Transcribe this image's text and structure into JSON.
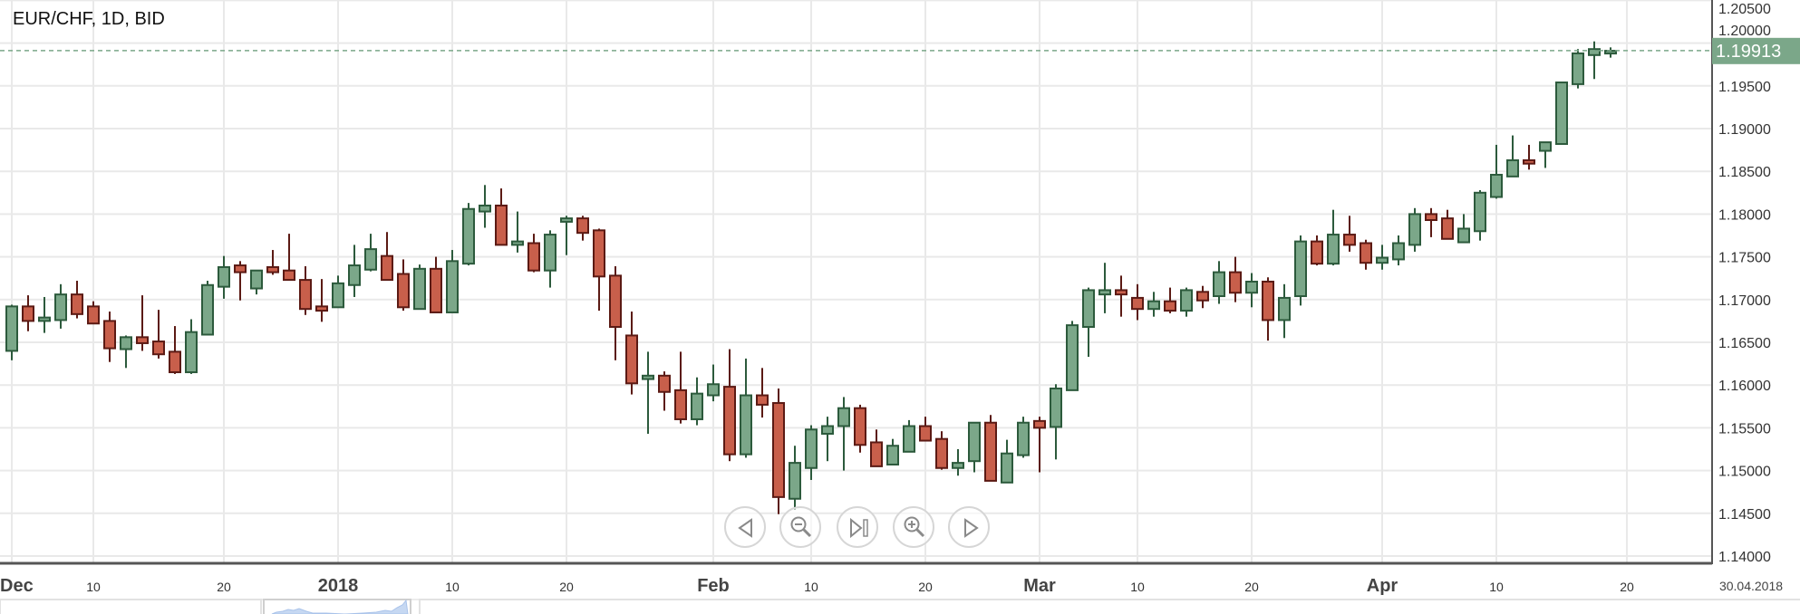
{
  "chart_data": {
    "type": "candlestick",
    "title": "EUR/CHF, 1D, BID",
    "ylim": [
      1.14,
      1.205
    ],
    "y_ticks": [
      "1.14000",
      "1.14500",
      "1.15000",
      "1.15500",
      "1.16000",
      "1.16500",
      "1.17000",
      "1.17500",
      "1.18000",
      "1.18500",
      "1.19000",
      "1.19500",
      "1.20000",
      "1.20500"
    ],
    "x_ticks": [
      {
        "label": "Dec",
        "at": 0,
        "bold": true
      },
      {
        "label": "10",
        "at": 5,
        "bold": false
      },
      {
        "label": "20",
        "at": 13,
        "bold": false
      },
      {
        "label": "2018",
        "at": 20,
        "bold": true
      },
      {
        "label": "10",
        "at": 27,
        "bold": false
      },
      {
        "label": "20",
        "at": 34,
        "bold": false
      },
      {
        "label": "Feb",
        "at": 43,
        "bold": true
      },
      {
        "label": "10",
        "at": 49,
        "bold": false
      },
      {
        "label": "20",
        "at": 56,
        "bold": false
      },
      {
        "label": "Mar",
        "at": 63,
        "bold": true
      },
      {
        "label": "10",
        "at": 69,
        "bold": false
      },
      {
        "label": "20",
        "at": 76,
        "bold": false
      },
      {
        "label": "Apr",
        "at": 84,
        "bold": true
      },
      {
        "label": "10",
        "at": 91,
        "bold": false
      },
      {
        "label": "20",
        "at": 99,
        "bold": false
      }
    ],
    "end_date_label": "30.04.2018",
    "last_price": "1.19913",
    "grid": true,
    "colors": {
      "up_fill": "#7ba789",
      "up_stroke": "#2c5a3c",
      "down_fill": "#c85f4b",
      "down_stroke": "#5b1a14",
      "last_price": "#7ba789"
    },
    "ohlc": [
      [
        1.164,
        1.1694,
        1.1629,
        1.1692
      ],
      [
        1.1692,
        1.1705,
        1.1663,
        1.1675
      ],
      [
        1.1675,
        1.1703,
        1.1661,
        1.1679
      ],
      [
        1.1676,
        1.1718,
        1.1666,
        1.1706
      ],
      [
        1.1706,
        1.1722,
        1.1678,
        1.1683
      ],
      [
        1.1692,
        1.1698,
        1.1672,
        1.1672
      ],
      [
        1.1675,
        1.1686,
        1.1627,
        1.1643
      ],
      [
        1.1642,
        1.1658,
        1.162,
        1.1656
      ],
      [
        1.1656,
        1.1705,
        1.164,
        1.1649
      ],
      [
        1.1651,
        1.1688,
        1.1631,
        1.1636
      ],
      [
        1.1639,
        1.1669,
        1.1613,
        1.1615
      ],
      [
        1.1615,
        1.1677,
        1.1613,
        1.1662
      ],
      [
        1.1659,
        1.1722,
        1.1659,
        1.1717
      ],
      [
        1.1715,
        1.1751,
        1.1701,
        1.1738
      ],
      [
        1.174,
        1.1745,
        1.1699,
        1.1732
      ],
      [
        1.1713,
        1.1734,
        1.1706,
        1.1734
      ],
      [
        1.1738,
        1.1758,
        1.1729,
        1.1732
      ],
      [
        1.1734,
        1.1777,
        1.1723,
        1.1723
      ],
      [
        1.1723,
        1.1739,
        1.1682,
        1.1689
      ],
      [
        1.1692,
        1.1724,
        1.1674,
        1.1687
      ],
      [
        1.1691,
        1.1728,
        1.1691,
        1.1719
      ],
      [
        1.1717,
        1.1764,
        1.1703,
        1.174
      ],
      [
        1.1735,
        1.1777,
        1.1733,
        1.1759
      ],
      [
        1.1751,
        1.1779,
        1.1723,
        1.1723
      ],
      [
        1.173,
        1.1747,
        1.1687,
        1.1691
      ],
      [
        1.1689,
        1.1741,
        1.1689,
        1.1736
      ],
      [
        1.1736,
        1.175,
        1.1685,
        1.1685
      ],
      [
        1.1685,
        1.1758,
        1.1685,
        1.1745
      ],
      [
        1.1742,
        1.1813,
        1.174,
        1.1806
      ],
      [
        1.1803,
        1.1834,
        1.1784,
        1.181
      ],
      [
        1.181,
        1.183,
        1.1764,
        1.1764
      ],
      [
        1.1764,
        1.1803,
        1.1755,
        1.1768
      ],
      [
        1.1766,
        1.1777,
        1.1732,
        1.1734
      ],
      [
        1.1734,
        1.1781,
        1.1714,
        1.1776
      ],
      [
        1.1791,
        1.1798,
        1.1752,
        1.1795
      ],
      [
        1.1795,
        1.1798,
        1.1769,
        1.1778
      ],
      [
        1.1781,
        1.1783,
        1.1687,
        1.1727
      ],
      [
        1.1728,
        1.1739,
        1.1629,
        1.1668
      ],
      [
        1.1658,
        1.1686,
        1.1589,
        1.1602
      ],
      [
        1.1607,
        1.1639,
        1.1543,
        1.1611
      ],
      [
        1.1611,
        1.1616,
        1.157,
        1.1592
      ],
      [
        1.1594,
        1.1639,
        1.1555,
        1.156
      ],
      [
        1.156,
        1.1609,
        1.1553,
        1.159
      ],
      [
        1.1588,
        1.1624,
        1.1581,
        1.1601
      ],
      [
        1.1598,
        1.1642,
        1.1511,
        1.1519
      ],
      [
        1.1519,
        1.1631,
        1.1515,
        1.1588
      ],
      [
        1.1588,
        1.162,
        1.1562,
        1.1577
      ],
      [
        1.1579,
        1.1596,
        1.1449,
        1.1469
      ],
      [
        1.1467,
        1.1529,
        1.1454,
        1.1509
      ],
      [
        1.1503,
        1.1553,
        1.1489,
        1.1548
      ],
      [
        1.1543,
        1.1563,
        1.1511,
        1.1552
      ],
      [
        1.1552,
        1.1586,
        1.15,
        1.1573
      ],
      [
        1.1573,
        1.1577,
        1.1521,
        1.153
      ],
      [
        1.1533,
        1.1548,
        1.1505,
        1.1505
      ],
      [
        1.1507,
        1.1537,
        1.1507,
        1.1529
      ],
      [
        1.1522,
        1.1559,
        1.1522,
        1.1552
      ],
      [
        1.1552,
        1.1563,
        1.1535,
        1.1535
      ],
      [
        1.1537,
        1.1546,
        1.1501,
        1.1503
      ],
      [
        1.1503,
        1.1525,
        1.1494,
        1.1509
      ],
      [
        1.1511,
        1.1556,
        1.1498,
        1.1556
      ],
      [
        1.1556,
        1.1565,
        1.1488,
        1.1488
      ],
      [
        1.1486,
        1.1536,
        1.1486,
        1.152
      ],
      [
        1.1518,
        1.1563,
        1.1515,
        1.1556
      ],
      [
        1.1558,
        1.1563,
        1.1498,
        1.155
      ],
      [
        1.1551,
        1.1601,
        1.1513,
        1.1596
      ],
      [
        1.1594,
        1.1675,
        1.1594,
        1.167
      ],
      [
        1.1668,
        1.1714,
        1.1633,
        1.1711
      ],
      [
        1.1706,
        1.1743,
        1.1684,
        1.1711
      ],
      [
        1.1711,
        1.1728,
        1.168,
        1.1706
      ],
      [
        1.1702,
        1.1718,
        1.1676,
        1.1689
      ],
      [
        1.1689,
        1.1709,
        1.168,
        1.1698
      ],
      [
        1.1698,
        1.1714,
        1.1684,
        1.1687
      ],
      [
        1.1687,
        1.1714,
        1.168,
        1.1711
      ],
      [
        1.1709,
        1.1716,
        1.169,
        1.1699
      ],
      [
        1.1704,
        1.1745,
        1.1695,
        1.1732
      ],
      [
        1.1732,
        1.175,
        1.1697,
        1.1708
      ],
      [
        1.1708,
        1.1731,
        1.1691,
        1.1721
      ],
      [
        1.1721,
        1.1726,
        1.1652,
        1.1676
      ],
      [
        1.1676,
        1.1718,
        1.1655,
        1.1702
      ],
      [
        1.1704,
        1.1775,
        1.1693,
        1.1768
      ],
      [
        1.1768,
        1.1775,
        1.174,
        1.1742
      ],
      [
        1.1742,
        1.1805,
        1.174,
        1.1776
      ],
      [
        1.1776,
        1.1798,
        1.1756,
        1.1764
      ],
      [
        1.1766,
        1.177,
        1.1735,
        1.1743
      ],
      [
        1.1743,
        1.1764,
        1.1735,
        1.1749
      ],
      [
        1.1747,
        1.1775,
        1.174,
        1.1766
      ],
      [
        1.1764,
        1.1807,
        1.1756,
        1.18
      ],
      [
        1.18,
        1.1807,
        1.1773,
        1.1793
      ],
      [
        1.1795,
        1.1805,
        1.1771,
        1.1771
      ],
      [
        1.1767,
        1.18,
        1.1767,
        1.1783
      ],
      [
        1.178,
        1.1828,
        1.1769,
        1.1825
      ],
      [
        1.182,
        1.1881,
        1.1818,
        1.1846
      ],
      [
        1.1844,
        1.1892,
        1.1844,
        1.1863
      ],
      [
        1.1863,
        1.1881,
        1.1852,
        1.1859
      ],
      [
        1.1874,
        1.1884,
        1.1854,
        1.1884
      ],
      [
        1.1882,
        1.1954,
        1.1882,
        1.1954
      ],
      [
        1.1952,
        1.1993,
        1.1947,
        1.1988
      ],
      [
        1.1986,
        1.2002,
        1.1958,
        1.1993
      ],
      [
        1.199,
        1.1995,
        1.1983,
        1.1991
      ]
    ]
  },
  "controls": {
    "scroll_left_icon": "triangle-left",
    "zoom_out_icon": "magnifier-minus",
    "reset_icon": "skip-to-end",
    "zoom_in_icon": "magnifier-plus",
    "scroll_right_icon": "triangle-right"
  }
}
